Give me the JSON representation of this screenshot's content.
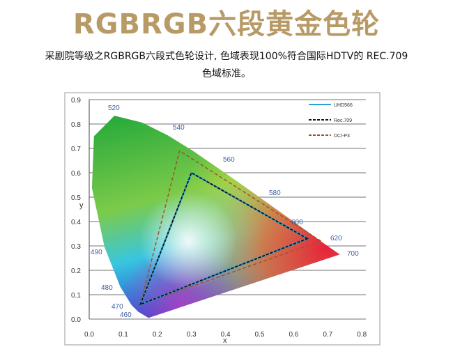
{
  "header": {
    "title": "RGBRGB六段黄金色轮"
  },
  "description": [
    "采剧院等级之RGBRGB六段式色轮设计, 色域表现100%符合国际HDTV的 REC.709",
    "色域标准。"
  ],
  "figure": {
    "x_label": "x",
    "y_label": "y",
    "xticks": [
      "0.0",
      "0.1",
      "0.2",
      "0.3",
      "0.4",
      "0.5",
      "0.6",
      "0.7",
      "0.8"
    ],
    "yticks": [
      "0.0",
      "0.1",
      "0.2",
      "0.3",
      "0.4",
      "0.5",
      "0.6",
      "0.7",
      "0.8",
      "0.9"
    ],
    "wavelengths": [
      "520",
      "540",
      "560",
      "580",
      "600",
      "620",
      "700",
      "490",
      "480",
      "470",
      "460"
    ],
    "legend": [
      "UHD566",
      "Rec.709",
      "DCI-P3"
    ]
  }
}
